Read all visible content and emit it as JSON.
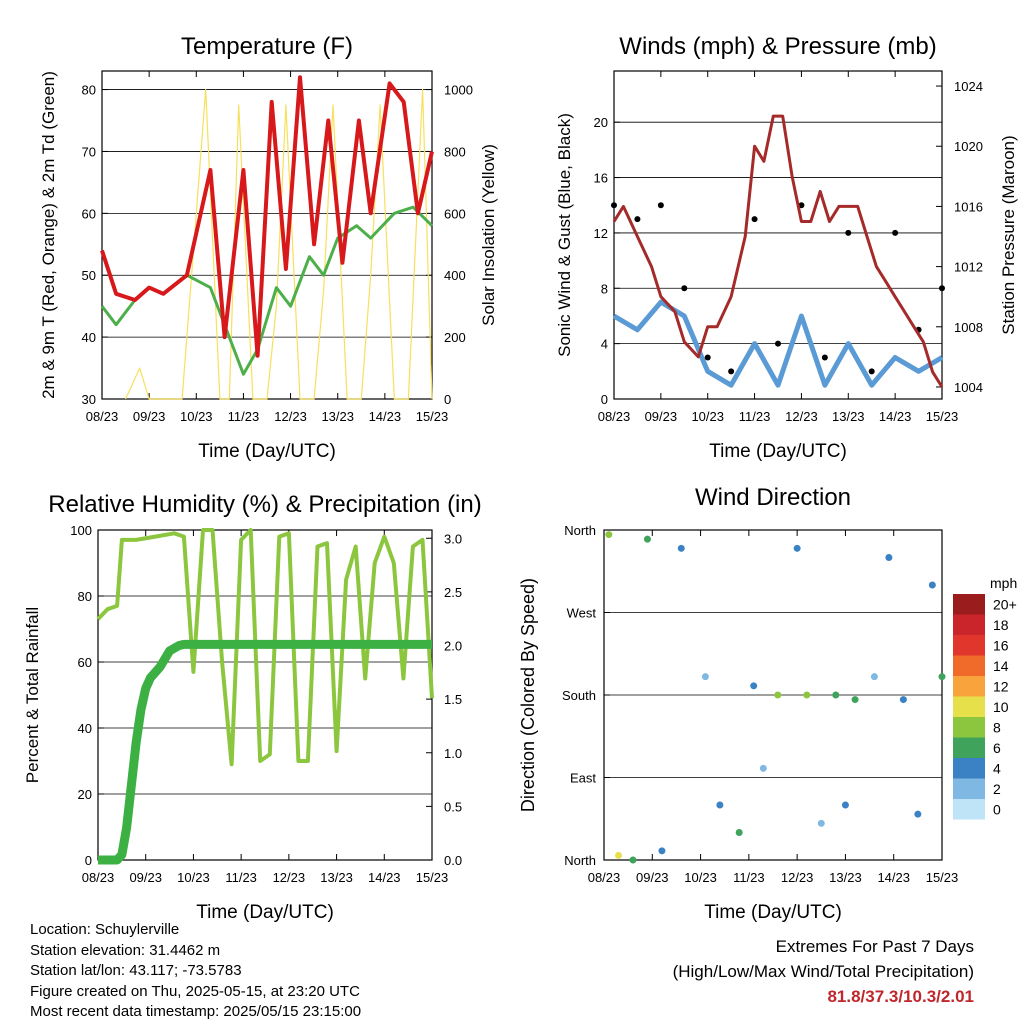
{
  "colors": {
    "temperature_red": "#d7191c",
    "temperature_orange": "#f28f33",
    "dewpoint_green": "#4daf4a",
    "insolation_yellow": "#f7e05c",
    "wind_blue": "#5b9bd5",
    "gust_black": "#000000",
    "pressure_maroon": "#a52a2a",
    "rh_lightgreen": "#8cc63f",
    "precip_green": "#3cb043",
    "extremes_red": "#c0272d"
  },
  "x_ticks": [
    "08/23",
    "09/23",
    "10/23",
    "11/23",
    "12/23",
    "13/23",
    "14/23",
    "15/23"
  ],
  "chart_data": [
    {
      "type": "line",
      "title": "Temperature (F)",
      "xlabel": "Time (Day/UTC)",
      "ylabel": "2m & 9m T (Red, Orange) & 2m Td (Green)",
      "y2label": "Solar Insolation (Yellow)",
      "ylim": [
        30,
        83
      ],
      "y2lim": [
        0,
        1060
      ],
      "yticks": [
        30,
        40,
        50,
        60,
        70,
        80
      ],
      "y2ticks": [
        0,
        200,
        400,
        600,
        800,
        1000
      ],
      "series": [
        {
          "axis": "left",
          "color": "#d7191c",
          "x": [
            0,
            0.3,
            0.7,
            1.0,
            1.3,
            1.8,
            2.3,
            2.6,
            3.0,
            3.3,
            3.6,
            3.9,
            4.2,
            4.5,
            4.8,
            5.1,
            5.45,
            5.7,
            6.1,
            6.4,
            6.7,
            7.0
          ],
          "y": [
            54,
            47,
            46,
            48,
            47,
            50,
            67,
            40,
            67,
            37,
            78,
            51,
            82,
            55,
            75,
            52,
            75,
            60,
            81,
            78,
            60,
            70
          ]
        },
        {
          "axis": "left",
          "color": "#4daf4a",
          "x": [
            0,
            0.3,
            0.7,
            1.0,
            1.3,
            1.8,
            2.3,
            2.7,
            3.0,
            3.3,
            3.7,
            4.0,
            4.4,
            4.7,
            5.0,
            5.4,
            5.7,
            6.2,
            6.6,
            7.0
          ],
          "y": [
            45,
            42,
            46,
            48,
            47,
            50,
            48,
            40,
            34,
            38,
            48,
            45,
            53,
            50,
            56,
            58,
            56,
            60,
            61,
            58
          ]
        },
        {
          "axis": "right",
          "color": "#f7e05c",
          "x": [
            0.5,
            0.8,
            1.0,
            1.3,
            1.7,
            1.9,
            2.2,
            2.5,
            2.7,
            2.9,
            3.2,
            3.5,
            3.7,
            3.9,
            4.2,
            4.5,
            4.7,
            4.9,
            5.2,
            5.5,
            5.7,
            5.9,
            6.2,
            6.5,
            6.8,
            7.0
          ],
          "y": [
            0,
            100,
            0,
            0,
            0,
            400,
            1000,
            0,
            0,
            950,
            0,
            0,
            300,
            950,
            0,
            0,
            350,
            950,
            0,
            0,
            400,
            950,
            0,
            0,
            1000,
            0
          ]
        }
      ]
    },
    {
      "type": "scatter",
      "title": "Winds (mph) & Pressure (mb)",
      "xlabel": "Time (Day/UTC)",
      "ylabel": "Sonic Wind & Gust (Blue, Black)",
      "y2label": "Station Pressure (Maroon)",
      "ylim": [
        0,
        23.7
      ],
      "y2lim": [
        1003.2,
        1025
      ],
      "yticks": [
        0,
        4,
        8,
        12,
        16,
        20
      ],
      "y2ticks": [
        1004,
        1008,
        1012,
        1016,
        1020,
        1024
      ],
      "series": [
        {
          "axis": "right",
          "color": "#a52a2a",
          "type": "line",
          "x": [
            0,
            0.2,
            0.5,
            0.8,
            1.0,
            1.3,
            1.5,
            1.8,
            2.0,
            2.2,
            2.5,
            2.8,
            3.0,
            3.2,
            3.4,
            3.6,
            3.8,
            4.0,
            4.2,
            4.4,
            4.6,
            4.8,
            5.0,
            5.2,
            5.4,
            5.6,
            5.8,
            6.0,
            6.2,
            6.4,
            6.6,
            6.8,
            7.0
          ],
          "y": [
            1015,
            1016,
            1014,
            1012,
            1010,
            1009,
            1007,
            1006,
            1008,
            1008,
            1010,
            1014,
            1020,
            1019,
            1022,
            1022,
            1018,
            1015,
            1015,
            1017,
            1015,
            1016,
            1016,
            1016,
            1014,
            1012,
            1011,
            1010,
            1009,
            1008,
            1007,
            1005,
            1004
          ]
        },
        {
          "axis": "left",
          "color": "#5b9bd5",
          "type": "band",
          "x": [
            0,
            0.5,
            1.0,
            1.5,
            2.0,
            2.5,
            3.0,
            3.5,
            4.0,
            4.5,
            5.0,
            5.5,
            6.0,
            6.5,
            7.0
          ],
          "y": [
            6,
            5,
            7,
            6,
            2,
            1,
            4,
            1,
            6,
            1,
            4,
            1,
            3,
            2,
            3
          ]
        },
        {
          "axis": "left",
          "color": "#000000",
          "type": "scatter",
          "x": [
            0,
            0.5,
            1.0,
            1.5,
            2.0,
            2.5,
            3.0,
            3.5,
            4.0,
            4.5,
            5.0,
            5.5,
            6.0,
            6.5,
            7.0
          ],
          "y": [
            14,
            13,
            14,
            8,
            3,
            2,
            13,
            4,
            14,
            3,
            12,
            2,
            12,
            5,
            8
          ]
        }
      ]
    },
    {
      "type": "line",
      "title": "Relative Humidity (%) & Precipitation (in)",
      "xlabel": "Time (Day/UTC)",
      "ylabel": "Percent & Total Rainfall",
      "ylim": [
        0,
        100
      ],
      "y2lim": [
        0,
        3.077
      ],
      "yticks": [
        0,
        20,
        40,
        60,
        80,
        100
      ],
      "y2ticks": [
        "0.0",
        "0.5",
        "1.0",
        "1.5",
        "2.0",
        "2.5",
        "3.0"
      ],
      "series": [
        {
          "axis": "left",
          "color": "#8cc63f",
          "x": [
            0,
            0.2,
            0.4,
            0.5,
            0.8,
            1.2,
            1.6,
            1.8,
            2.0,
            2.2,
            2.4,
            2.6,
            2.8,
            3.0,
            3.2,
            3.4,
            3.6,
            3.8,
            4.0,
            4.2,
            4.4,
            4.6,
            4.8,
            5.0,
            5.2,
            5.4,
            5.6,
            5.8,
            6.0,
            6.2,
            6.4,
            6.6,
            6.8,
            7.0
          ],
          "y": [
            73,
            76,
            77,
            97,
            97,
            98,
            99,
            98,
            57,
            100,
            100,
            60,
            29,
            97,
            100,
            30,
            32,
            98,
            99,
            30,
            30,
            95,
            96,
            33,
            85,
            95,
            55,
            90,
            98,
            90,
            55,
            95,
            97,
            49
          ]
        },
        {
          "axis": "right",
          "color": "#3cb043",
          "x": [
            0,
            0.4,
            0.5,
            0.6,
            0.7,
            0.8,
            0.9,
            1.0,
            1.1,
            1.3,
            1.5,
            1.7,
            1.8,
            2.0,
            3.0,
            4.0,
            5.0,
            6.0,
            7.0
          ],
          "y": [
            0,
            0,
            0.05,
            0.3,
            0.7,
            1.1,
            1.4,
            1.6,
            1.7,
            1.8,
            1.95,
            2.0,
            2.01,
            2.01,
            2.01,
            2.01,
            2.01,
            2.01,
            2.01
          ]
        }
      ]
    },
    {
      "type": "scatter",
      "title": "Wind Direction",
      "xlabel": "Time (Day/UTC)",
      "ylabel": "Direction (Colored By Speed)",
      "direction_labels": [
        "North",
        "West",
        "South",
        "East",
        "North"
      ],
      "legend_title": "mph",
      "legend_labels": [
        "20+",
        "18",
        "16",
        "14",
        "12",
        "10",
        "8",
        "6",
        "4",
        "2",
        "0"
      ],
      "legend_colors": [
        "#9b1c1c",
        "#c9252b",
        "#e0362c",
        "#f06a2a",
        "#f9a33c",
        "#e6e04a",
        "#8cc63f",
        "#3fa35b",
        "#3b82c4",
        "#7fb8e3",
        "#bfe4f7"
      ],
      "series": [
        {
          "name_hidden": "direction",
          "x": [
            0.1,
            0.3,
            0.6,
            0.9,
            1.2,
            1.6,
            2.1,
            2.4,
            2.8,
            3.1,
            3.3,
            3.6,
            4.0,
            4.2,
            4.5,
            4.8,
            5.0,
            5.2,
            5.6,
            5.9,
            6.2,
            6.5,
            6.8,
            7.0
          ],
          "y": [
            355,
            5,
            0,
            350,
            10,
            340,
            200,
            60,
            30,
            190,
            100,
            180,
            340,
            180,
            40,
            180,
            60,
            175,
            200,
            330,
            175,
            50,
            300,
            200
          ],
          "speed": [
            8,
            9,
            6,
            5,
            4,
            3,
            2,
            4,
            6,
            3,
            2,
            8,
            3,
            7,
            2,
            6,
            3,
            6,
            2,
            3,
            4,
            3,
            4,
            5
          ]
        }
      ]
    }
  ],
  "info": {
    "location": "Location: Schuylerville",
    "elevation": "Station elevation: 31.4462 m",
    "latlon": "Station lat/lon: 43.117; -73.5783",
    "created": "Figure created on Thu, 2025-05-15, at 23:20 UTC",
    "recent": "Most recent data timestamp: 2025/05/15 23:15:00"
  },
  "extremes": {
    "title": "Extremes For Past 7 Days",
    "subtitle": "(High/Low/Max Wind/Total Precipitation)",
    "values": "81.8/37.3/10.3/2.01"
  }
}
